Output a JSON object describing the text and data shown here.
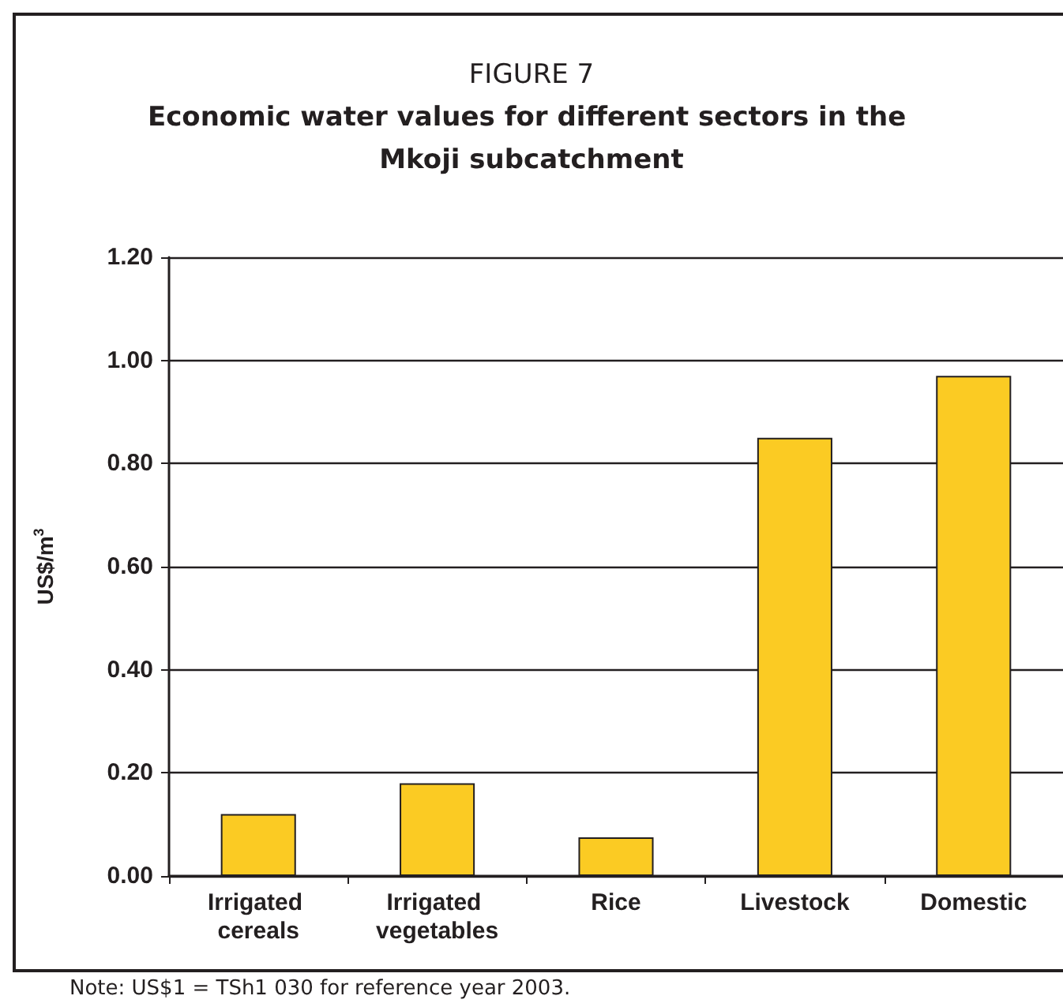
{
  "chart_data": {
    "type": "bar",
    "title": "FIGURE 7",
    "subtitle": "Economic water values for different sectors in the Mkoji subcatchment",
    "ylabel": "US$/m$^{3}$",
    "categories": [
      "Irrigated cereals",
      "Irrigated vegetables",
      "Rice",
      "Livestock",
      "Domestic"
    ],
    "values": [
      0.12,
      0.18,
      0.075,
      0.85,
      0.97
    ],
    "color": "#fbcb23",
    "ylim": [
      0,
      1.2
    ],
    "yticks": [
      {
        "value": 0,
        "label": "0.00"
      },
      {
        "value": 0.2,
        "label": "0.20"
      },
      {
        "value": 0.4,
        "label": "0.40"
      },
      {
        "value": 0.6,
        "label": "0.60"
      },
      {
        "value": 0.8,
        "label": "0.80"
      },
      {
        "value": 1.0,
        "label": "1.00"
      },
      {
        "value": 1.2,
        "label": "1.20"
      }
    ],
    "grid": "y",
    "annotations": [
      "Note: US$1 = TSh1 030 for reference year 2003."
    ]
  }
}
